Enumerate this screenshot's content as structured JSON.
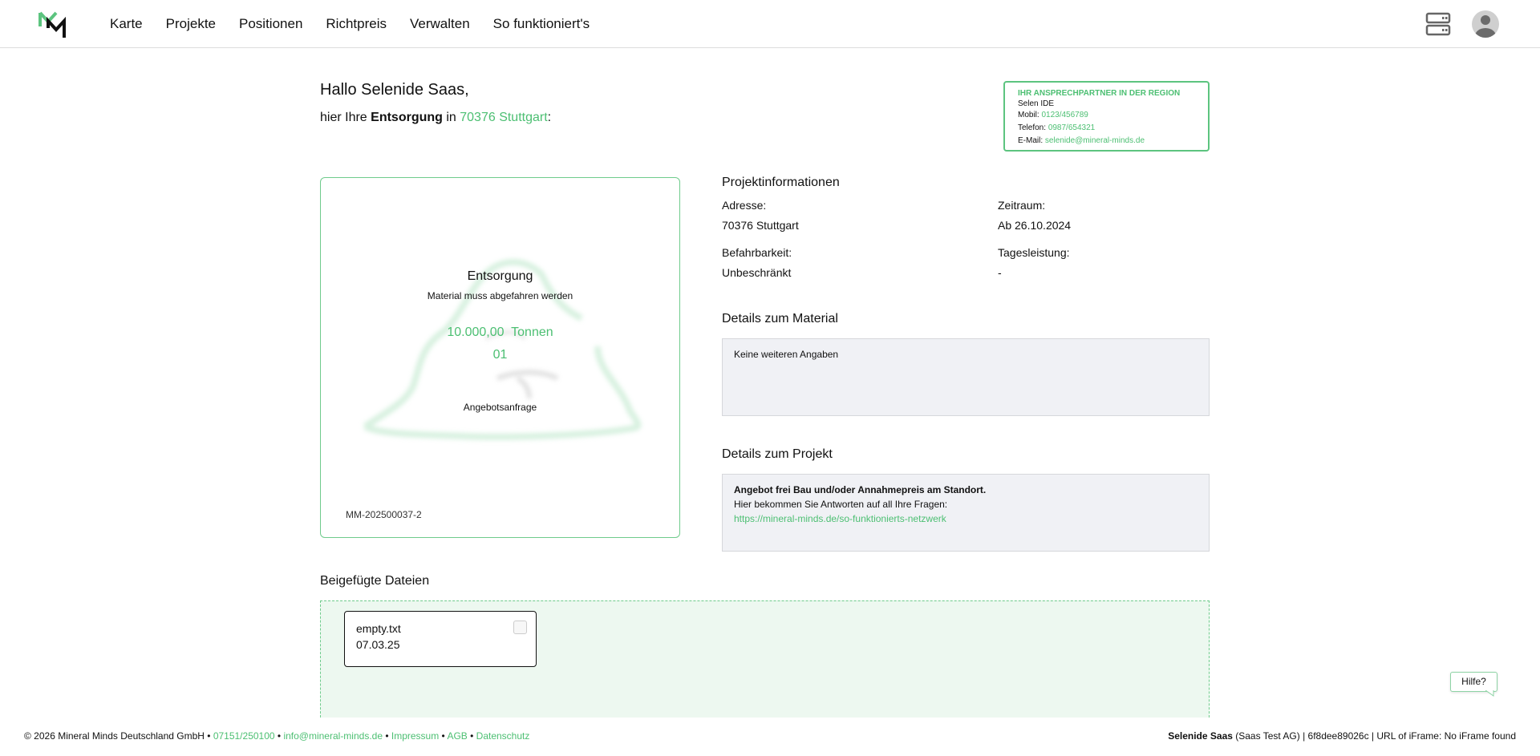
{
  "nav": {
    "items": [
      "Karte",
      "Projekte",
      "Positionen",
      "Richtpreis",
      "Verwalten",
      "So funktioniert's"
    ],
    "icons": [
      "server-icon",
      "avatar-icon"
    ]
  },
  "greeting": {
    "hello": "Hallo Selenide Saas,",
    "prefix": "hier Ihre ",
    "type": "Entsorgung",
    "in": " in ",
    "location": "70376 Stuttgart",
    "suffix": ":"
  },
  "contact": {
    "title": "IHR ANSPRECHPARTNER IN DER REGION",
    "name": "Selen IDE",
    "mobile_label": "Mobil: ",
    "mobile": "0123/456789",
    "phone_label": "Telefon: ",
    "phone": "0987/654321",
    "email_label": "E-Mail: ",
    "email": "selenide@mineral-minds.de"
  },
  "card": {
    "title": "Entsorgung",
    "subtitle": "Material muss abgefahren werden",
    "amount": "10.000,00  Tonnen",
    "code": "01",
    "status": "Angebotsanfrage",
    "id": "MM-202500037-2"
  },
  "project": {
    "heading": "Projektinformationen",
    "address_label": "Adresse:",
    "address": "70376 Stuttgart",
    "period_label": "Zeitraum:",
    "period": "Ab 26.10.2024",
    "access_label": "Befahrbarkeit:",
    "access": "Unbeschränkt",
    "daily_label": "Tagesleistung:",
    "daily": "-"
  },
  "material": {
    "heading": "Details zum Material",
    "text": "Keine weiteren Angaben"
  },
  "project_details": {
    "heading": "Details zum Projekt",
    "bold": "Angebot frei Bau und/oder Annahmepreis am Standort.",
    "text": "Hier bekommen Sie Antworten auf all Ihre Fragen:",
    "link": "https://mineral-minds.de/so-funktionierts-netzwerk"
  },
  "files": {
    "heading": "Beigefügte Dateien",
    "items": [
      {
        "name": "empty.txt",
        "date": "07.03.25"
      }
    ]
  },
  "help": "Hilfe?",
  "footer": {
    "copy": "© 2026 Mineral Minds Deutschland GmbH • ",
    "phone": "07151/250100",
    "sep": " • ",
    "email": "info@mineral-minds.de",
    "impressum": "Impressum",
    "agb": "AGB",
    "datenschutz": "Datenschutz",
    "user": "Selenide Saas",
    "right": " (Saas Test AG) | 6f8dee89026c | URL of iFrame: No iFrame found"
  },
  "colors": {
    "accent": "#4cbf72",
    "box_bg": "#f0f1f5",
    "drop_bg": "#edf8f0"
  }
}
